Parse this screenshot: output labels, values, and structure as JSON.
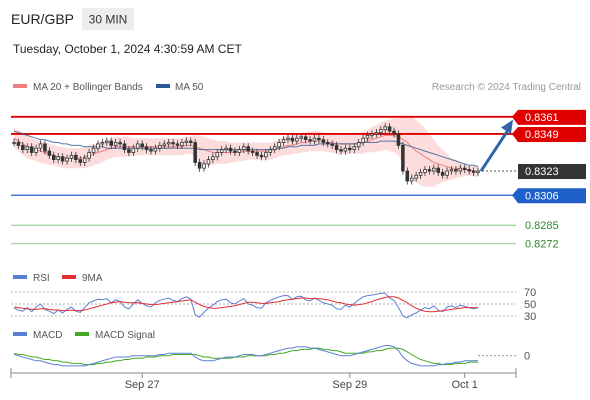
{
  "header": {
    "symbol": "EUR/GBP",
    "timeframe": "30 MIN",
    "datetime": "Tuesday, October 1, 2024 4:30:59 AM CET",
    "attribution": "Research © 2024 Trading Central"
  },
  "colors": {
    "candle": "#333333",
    "ma20": "#f08080",
    "bollinger_fill": "#fbd6d6",
    "ma50": "#2a5a9a",
    "resistance": "#e00000",
    "support": "#1f5fc9",
    "target": "#2ea12e",
    "current": "#333333",
    "arrow": "#2f64a6",
    "rsi": "#5b7fd6",
    "rsi_ma": "#e03030",
    "macd": "#5b7fd6",
    "macd_signal": "#44aa22"
  },
  "chart_data": [
    {
      "type": "line",
      "name": "price",
      "legend": [
        {
          "label": "MA 20 + Bollinger Bands",
          "color": "#f08080"
        },
        {
          "label": "MA 50",
          "color": "#2a5a9a"
        }
      ],
      "x_ticks": [
        "Sep 27",
        "Sep 29",
        "Oct 1"
      ],
      "ylim": [
        0.8262,
        0.837
      ],
      "levels": [
        {
          "label": "0.8361",
          "value": 0.8361,
          "kind": "resistance"
        },
        {
          "label": "0.8349",
          "value": 0.8349,
          "kind": "resistance"
        },
        {
          "label": "0.8323",
          "value": 0.8323,
          "kind": "current"
        },
        {
          "label": "0.8306",
          "value": 0.8306,
          "kind": "support"
        },
        {
          "label": "0.8285",
          "value": 0.8285,
          "kind": "target"
        },
        {
          "label": "0.8272",
          "value": 0.8272,
          "kind": "target"
        }
      ],
      "close": [
        0.8343,
        0.8341,
        0.8338,
        0.834,
        0.8336,
        0.8339,
        0.8342,
        0.8337,
        0.8334,
        0.8331,
        0.8333,
        0.833,
        0.8332,
        0.8334,
        0.8331,
        0.8329,
        0.8332,
        0.8336,
        0.8339,
        0.8342,
        0.8343,
        0.8344,
        0.8341,
        0.8343,
        0.8342,
        0.8338,
        0.8336,
        0.8339,
        0.8342,
        0.834,
        0.8338,
        0.8337,
        0.8339,
        0.8341,
        0.8342,
        0.8343,
        0.8342,
        0.8341,
        0.8343,
        0.8344,
        0.8343,
        0.8329,
        0.8325,
        0.8328,
        0.8331,
        0.8333,
        0.8336,
        0.8338,
        0.8339,
        0.8337,
        0.8336,
        0.8338,
        0.834,
        0.8337,
        0.8336,
        0.8334,
        0.8333,
        0.8336,
        0.8338,
        0.834,
        0.8343,
        0.8345,
        0.8346,
        0.8344,
        0.8346,
        0.8347,
        0.8345,
        0.8344,
        0.8346,
        0.8345,
        0.8343,
        0.8342,
        0.8341,
        0.8338,
        0.8337,
        0.8339,
        0.8338,
        0.834,
        0.8343,
        0.8346,
        0.8348,
        0.8349,
        0.835,
        0.8352,
        0.8354,
        0.8351,
        0.8349,
        0.8341,
        0.8323,
        0.8316,
        0.8318,
        0.832,
        0.8322,
        0.8324,
        0.8323,
        0.8325,
        0.8322,
        0.832,
        0.8323,
        0.8324,
        0.8323,
        0.8325,
        0.8324,
        0.8323,
        0.8322,
        0.8323
      ],
      "ma20": [
        0.8346,
        0.8344,
        0.8342,
        0.834,
        0.8339,
        0.8338,
        0.8337,
        0.8336,
        0.8335,
        0.8334,
        0.8333,
        0.8333,
        0.8332,
        0.8332,
        0.8332,
        0.8332,
        0.8333,
        0.8334,
        0.8335,
        0.8336,
        0.8337,
        0.8338,
        0.8339,
        0.834,
        0.834,
        0.834,
        0.834,
        0.834,
        0.834,
        0.834,
        0.834,
        0.834,
        0.834,
        0.834,
        0.834,
        0.834,
        0.834,
        0.834,
        0.834,
        0.8341,
        0.8341,
        0.834,
        0.8339,
        0.8338,
        0.8337,
        0.8336,
        0.8336,
        0.8336,
        0.8336,
        0.8336,
        0.8336,
        0.8337,
        0.8337,
        0.8337,
        0.8337,
        0.8337,
        0.8337,
        0.8337,
        0.8337,
        0.8338,
        0.8339,
        0.834,
        0.8341,
        0.8341,
        0.8342,
        0.8343,
        0.8343,
        0.8344,
        0.8344,
        0.8344,
        0.8344,
        0.8343,
        0.8343,
        0.8342,
        0.8342,
        0.8342,
        0.8342,
        0.8342,
        0.8343,
        0.8343,
        0.8344,
        0.8345,
        0.8346,
        0.8347,
        0.8348,
        0.8348,
        0.8348,
        0.8347,
        0.8345,
        0.8343,
        0.834,
        0.8337,
        0.8335,
        0.8333,
        0.8331,
        0.8329,
        0.8328,
        0.8327,
        0.8326,
        0.8325,
        0.8325,
        0.8324,
        0.8324,
        0.8324,
        0.8323,
        0.8323
      ],
      "boll_upper": [
        0.8353,
        0.8352,
        0.835,
        0.8348,
        0.8346,
        0.8345,
        0.8344,
        0.8343,
        0.8342,
        0.8341,
        0.834,
        0.834,
        0.8339,
        0.8339,
        0.8339,
        0.8339,
        0.834,
        0.8341,
        0.8342,
        0.8343,
        0.8344,
        0.8345,
        0.8346,
        0.8347,
        0.8347,
        0.8347,
        0.8347,
        0.8346,
        0.8346,
        0.8346,
        0.8346,
        0.8346,
        0.8346,
        0.8346,
        0.8346,
        0.8346,
        0.8346,
        0.8346,
        0.8346,
        0.8347,
        0.8347,
        0.8348,
        0.8348,
        0.8347,
        0.8346,
        0.8345,
        0.8344,
        0.8344,
        0.8344,
        0.8343,
        0.8343,
        0.8343,
        0.8343,
        0.8343,
        0.8343,
        0.8343,
        0.8343,
        0.8343,
        0.8343,
        0.8344,
        0.8345,
        0.8347,
        0.8348,
        0.8348,
        0.8349,
        0.835,
        0.835,
        0.8351,
        0.8351,
        0.8351,
        0.835,
        0.835,
        0.8349,
        0.8349,
        0.8349,
        0.8349,
        0.8349,
        0.8349,
        0.835,
        0.8351,
        0.8352,
        0.8354,
        0.8355,
        0.8357,
        0.8358,
        0.8359,
        0.836,
        0.836,
        0.8362,
        0.8362,
        0.8361,
        0.8359,
        0.8356,
        0.8353,
        0.8349,
        0.8345,
        0.8341,
        0.8338,
        0.8335,
        0.8332,
        0.8331,
        0.8329,
        0.8328,
        0.8327,
        0.8327,
        0.8327
      ],
      "boll_lower": [
        0.8339,
        0.8337,
        0.8334,
        0.8332,
        0.8331,
        0.833,
        0.8329,
        0.8328,
        0.8327,
        0.8327,
        0.8326,
        0.8325,
        0.8325,
        0.8325,
        0.8325,
        0.8325,
        0.8325,
        0.8326,
        0.8327,
        0.8328,
        0.8329,
        0.8331,
        0.8332,
        0.8333,
        0.8333,
        0.8333,
        0.8333,
        0.8334,
        0.8334,
        0.8334,
        0.8334,
        0.8334,
        0.8334,
        0.8334,
        0.8334,
        0.8334,
        0.8334,
        0.8334,
        0.8334,
        0.8335,
        0.8335,
        0.8332,
        0.8329,
        0.8328,
        0.8327,
        0.8327,
        0.8328,
        0.8328,
        0.8328,
        0.8329,
        0.8329,
        0.833,
        0.833,
        0.8331,
        0.8331,
        0.8331,
        0.8331,
        0.8331,
        0.8331,
        0.8332,
        0.8333,
        0.8334,
        0.8334,
        0.8335,
        0.8335,
        0.8336,
        0.8336,
        0.8337,
        0.8337,
        0.8337,
        0.8337,
        0.8336,
        0.8336,
        0.8335,
        0.8335,
        0.8335,
        0.8335,
        0.8335,
        0.8335,
        0.8335,
        0.8336,
        0.8336,
        0.8337,
        0.8337,
        0.8338,
        0.8337,
        0.8336,
        0.8334,
        0.8328,
        0.8323,
        0.8318,
        0.8315,
        0.8313,
        0.8312,
        0.8312,
        0.8312,
        0.8314,
        0.8315,
        0.8316,
        0.8317,
        0.8318,
        0.8319,
        0.8319,
        0.832,
        0.8319,
        0.8319
      ],
      "ma50": [
        0.8351,
        0.835,
        0.8349,
        0.8348,
        0.8347,
        0.8346,
        0.8345,
        0.8345,
        0.8344,
        0.8343,
        0.8343,
        0.8342,
        0.8342,
        0.8341,
        0.8341,
        0.8341,
        0.834,
        0.834,
        0.834,
        0.834,
        0.834,
        0.8339,
        0.8339,
        0.8339,
        0.8339,
        0.8339,
        0.8339,
        0.8339,
        0.8339,
        0.8339,
        0.8339,
        0.8339,
        0.8339,
        0.8339,
        0.8339,
        0.8339,
        0.8339,
        0.8339,
        0.8339,
        0.8339,
        0.8339,
        0.8339,
        0.8338,
        0.8338,
        0.8338,
        0.8338,
        0.8338,
        0.8338,
        0.8338,
        0.8338,
        0.8338,
        0.8338,
        0.8338,
        0.8338,
        0.8338,
        0.8338,
        0.8338,
        0.8338,
        0.8338,
        0.8339,
        0.8339,
        0.8339,
        0.834,
        0.834,
        0.834,
        0.8341,
        0.8341,
        0.8341,
        0.8341,
        0.8342,
        0.8342,
        0.8342,
        0.8342,
        0.8342,
        0.8342,
        0.8342,
        0.8342,
        0.8342,
        0.8342,
        0.8343,
        0.8343,
        0.8343,
        0.8343,
        0.8344,
        0.8344,
        0.8344,
        0.8344,
        0.8343,
        0.8342,
        0.8341,
        0.834,
        0.8339,
        0.8338,
        0.8337,
        0.8336,
        0.8335,
        0.8334,
        0.8333,
        0.8332,
        0.8331,
        0.833,
        0.8329,
        0.8328,
        0.8327,
        0.8327,
        0.8326
      ],
      "arrow_target": 0.8359
    },
    {
      "type": "line",
      "name": "RSI",
      "legend": [
        {
          "label": "RSI",
          "color": "#5b7fd6"
        },
        {
          "label": "9MA",
          "color": "#e03030"
        }
      ],
      "ylim": [
        25,
        75
      ],
      "y_ticks": [
        "70",
        "50",
        "30"
      ],
      "tick_values": [
        70,
        50,
        30
      ],
      "rsi": [
        43,
        40,
        38,
        44,
        37,
        45,
        50,
        41,
        38,
        34,
        40,
        35,
        41,
        45,
        38,
        36,
        44,
        52,
        55,
        58,
        57,
        59,
        52,
        57,
        54,
        45,
        42,
        50,
        57,
        51,
        47,
        45,
        52,
        56,
        58,
        60,
        56,
        54,
        59,
        62,
        58,
        32,
        28,
        36,
        43,
        48,
        54,
        57,
        58,
        52,
        50,
        55,
        59,
        50,
        48,
        44,
        43,
        52,
        56,
        59,
        62,
        64,
        64,
        58,
        62,
        63,
        57,
        55,
        60,
        56,
        52,
        50,
        48,
        42,
        41,
        48,
        45,
        51,
        57,
        62,
        64,
        65,
        66,
        68,
        68,
        60,
        56,
        44,
        30,
        27,
        32,
        35,
        40,
        44,
        42,
        47,
        40,
        37,
        45,
        47,
        44,
        48,
        46,
        44,
        42,
        44
      ],
      "rsi_ma": [
        45,
        44,
        43,
        42,
        41,
        41,
        42,
        42,
        41,
        40,
        40,
        39,
        39,
        40,
        39,
        39,
        40,
        42,
        44,
        46,
        48,
        50,
        52,
        53,
        54,
        53,
        52,
        52,
        52,
        51,
        50,
        49,
        49,
        50,
        51,
        52,
        53,
        54,
        55,
        56,
        57,
        53,
        49,
        46,
        44,
        43,
        43,
        44,
        45,
        46,
        47,
        49,
        51,
        53,
        53,
        52,
        51,
        51,
        52,
        53,
        54,
        56,
        57,
        58,
        59,
        60,
        60,
        59,
        59,
        59,
        58,
        57,
        55,
        53,
        52,
        50,
        49,
        48,
        49,
        50,
        52,
        54,
        57,
        59,
        61,
        62,
        62,
        60,
        56,
        52,
        47,
        43,
        40,
        38,
        37,
        37,
        38,
        39,
        40,
        41,
        42,
        43,
        44,
        44,
        44,
        44
      ]
    },
    {
      "type": "line",
      "name": "MACD",
      "legend": [
        {
          "label": "MACD",
          "color": "#5b7fd6"
        },
        {
          "label": "MACD Signal",
          "color": "#44aa22"
        }
      ],
      "ylim": [
        -0.0012,
        0.001
      ],
      "y_ticks": [
        "0"
      ],
      "tick_values": [
        0
      ],
      "macd": [
        0.0001,
        0.0,
        -0.0001,
        -0.0002,
        -0.0003,
        -0.0004,
        -0.0004,
        -0.0005,
        -0.0006,
        -0.0007,
        -0.0007,
        -0.0008,
        -0.0008,
        -0.0008,
        -0.0008,
        -0.0008,
        -0.0008,
        -0.0007,
        -0.0006,
        -0.0005,
        -0.0004,
        -0.0003,
        -0.0002,
        -0.0001,
        -0.0001,
        -0.0001,
        -0.0001,
        0.0,
        0.0,
        0.0,
        0.0,
        0.0,
        0.0,
        0.0001,
        0.0001,
        0.0002,
        0.0002,
        0.0002,
        0.0002,
        0.0002,
        0.0002,
        -0.0001,
        -0.0003,
        -0.0004,
        -0.0004,
        -0.0004,
        -0.0003,
        -0.0002,
        -0.0001,
        -0.0001,
        -0.0001,
        0.0,
        0.0001,
        0.0001,
        0.0001,
        0.0,
        0.0,
        0.0001,
        0.0002,
        0.0003,
        0.0004,
        0.0005,
        0.0006,
        0.0006,
        0.0007,
        0.0007,
        0.0007,
        0.0006,
        0.0006,
        0.0005,
        0.0004,
        0.0003,
        0.0002,
        0.0001,
        0.0,
        0.0,
        0.0,
        0.0001,
        0.0002,
        0.0003,
        0.0004,
        0.0005,
        0.0006,
        0.0007,
        0.0008,
        0.0008,
        0.0007,
        0.0004,
        -0.0001,
        -0.0004,
        -0.0006,
        -0.0007,
        -0.0008,
        -0.0008,
        -0.0008,
        -0.0008,
        -0.0007,
        -0.0007,
        -0.0006,
        -0.0006,
        -0.0005,
        -0.0005,
        -0.0004,
        -0.0004,
        -0.0004,
        -0.0004
      ],
      "macd_signal": [
        0.0002,
        0.0001,
        0.0001,
        0.0,
        -0.0001,
        -0.0001,
        -0.0002,
        -0.0003,
        -0.0003,
        -0.0004,
        -0.0004,
        -0.0005,
        -0.0005,
        -0.0006,
        -0.0006,
        -0.0006,
        -0.0007,
        -0.0007,
        -0.0007,
        -0.0006,
        -0.0006,
        -0.0005,
        -0.0005,
        -0.0004,
        -0.0004,
        -0.0003,
        -0.0003,
        -0.0002,
        -0.0002,
        -0.0002,
        -0.0001,
        -0.0001,
        -0.0001,
        0.0,
        0.0,
        0.0,
        0.0001,
        0.0001,
        0.0001,
        0.0001,
        0.0001,
        0.0001,
        0.0,
        -0.0001,
        -0.0001,
        -0.0002,
        -0.0002,
        -0.0002,
        -0.0002,
        -0.0002,
        -0.0001,
        -0.0001,
        -0.0001,
        0.0,
        0.0,
        0.0,
        0.0,
        0.0,
        0.0001,
        0.0001,
        0.0002,
        0.0002,
        0.0003,
        0.0004,
        0.0004,
        0.0005,
        0.0005,
        0.0005,
        0.0006,
        0.0006,
        0.0005,
        0.0005,
        0.0004,
        0.0004,
        0.0003,
        0.0002,
        0.0002,
        0.0002,
        0.0002,
        0.0002,
        0.0003,
        0.0003,
        0.0004,
        0.0004,
        0.0005,
        0.0006,
        0.0006,
        0.0006,
        0.0005,
        0.0003,
        0.0001,
        -0.0001,
        -0.0003,
        -0.0004,
        -0.0005,
        -0.0006,
        -0.0006,
        -0.0007,
        -0.0007,
        -0.0007,
        -0.0006,
        -0.0006,
        -0.0006,
        -0.0005,
        -0.0005,
        -0.0005
      ]
    }
  ]
}
